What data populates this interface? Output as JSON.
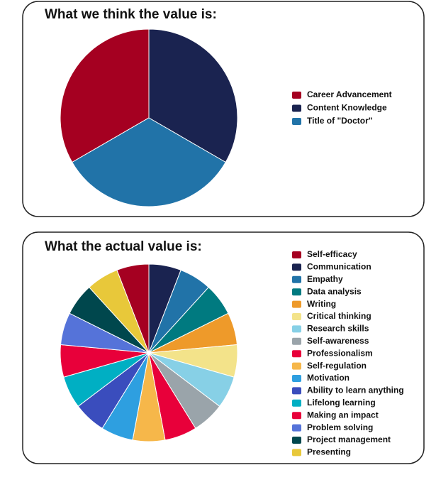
{
  "chart_data": [
    {
      "type": "pie",
      "title": "What we think the value is:",
      "series": [
        {
          "name": "Career Advancement",
          "color": "#a50021",
          "values": [
            33.3
          ]
        },
        {
          "name": "Content Knowledge",
          "color": "#1a2350",
          "values": [
            33.3
          ]
        },
        {
          "name": "Title of \"Doctor\"",
          "color": "#2173a8",
          "values": [
            33.3
          ]
        }
      ]
    },
    {
      "type": "pie",
      "title": "What the actual value is:",
      "series": [
        {
          "name": "Self-efficacy",
          "color": "#a50021",
          "values": [
            5.9
          ]
        },
        {
          "name": "Communication",
          "color": "#1a2350",
          "values": [
            5.9
          ]
        },
        {
          "name": "Empathy",
          "color": "#2173a8",
          "values": [
            5.9
          ]
        },
        {
          "name": "Data analysis",
          "color": "#007a80",
          "values": [
            5.9
          ]
        },
        {
          "name": "Writing",
          "color": "#ee9a2a",
          "values": [
            5.9
          ]
        },
        {
          "name": "Critical thinking",
          "color": "#f3e38a",
          "values": [
            5.9
          ]
        },
        {
          "name": "Research skills",
          "color": "#87d0e6",
          "values": [
            5.9
          ]
        },
        {
          "name": "Self-awareness",
          "color": "#9aa4aa",
          "values": [
            5.9
          ]
        },
        {
          "name": "Professionalism",
          "color": "#e8003a",
          "values": [
            5.9
          ]
        },
        {
          "name": "Self-regulation",
          "color": "#f6b74a",
          "values": [
            5.9
          ]
        },
        {
          "name": "Motivation",
          "color": "#2e9fe0",
          "values": [
            5.9
          ]
        },
        {
          "name": "Ability to learn anything",
          "color": "#3a4dbd",
          "values": [
            5.9
          ]
        },
        {
          "name": "Lifelong learning",
          "color": "#00afc3",
          "values": [
            5.9
          ]
        },
        {
          "name": "Making an impact",
          "color": "#e8003a",
          "values": [
            5.9
          ]
        },
        {
          "name": "Problem solving",
          "color": "#5573d9",
          "values": [
            5.9
          ]
        },
        {
          "name": "Project management",
          "color": "#00474d",
          "values": [
            5.9
          ]
        },
        {
          "name": "Presenting",
          "color": "#e8c83a",
          "values": [
            5.9
          ]
        }
      ]
    }
  ]
}
